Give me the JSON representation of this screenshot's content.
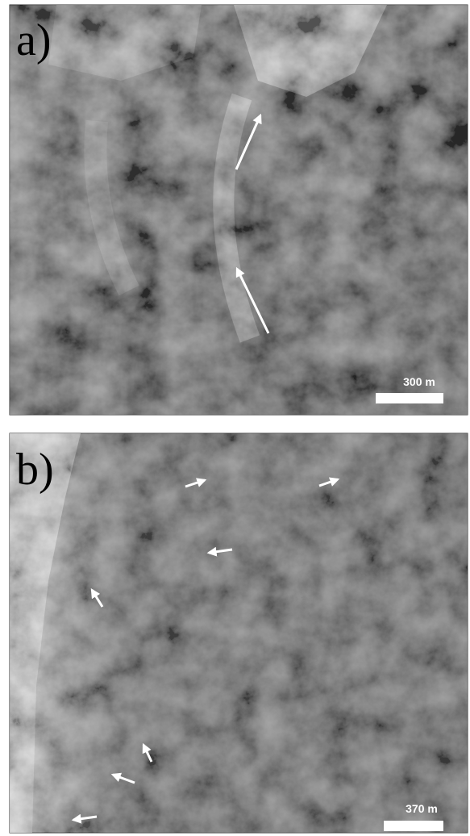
{
  "panels": [
    {
      "label": "a)",
      "scale": "300 m"
    },
    {
      "label": "b)",
      "scale": "370 m"
    }
  ]
}
